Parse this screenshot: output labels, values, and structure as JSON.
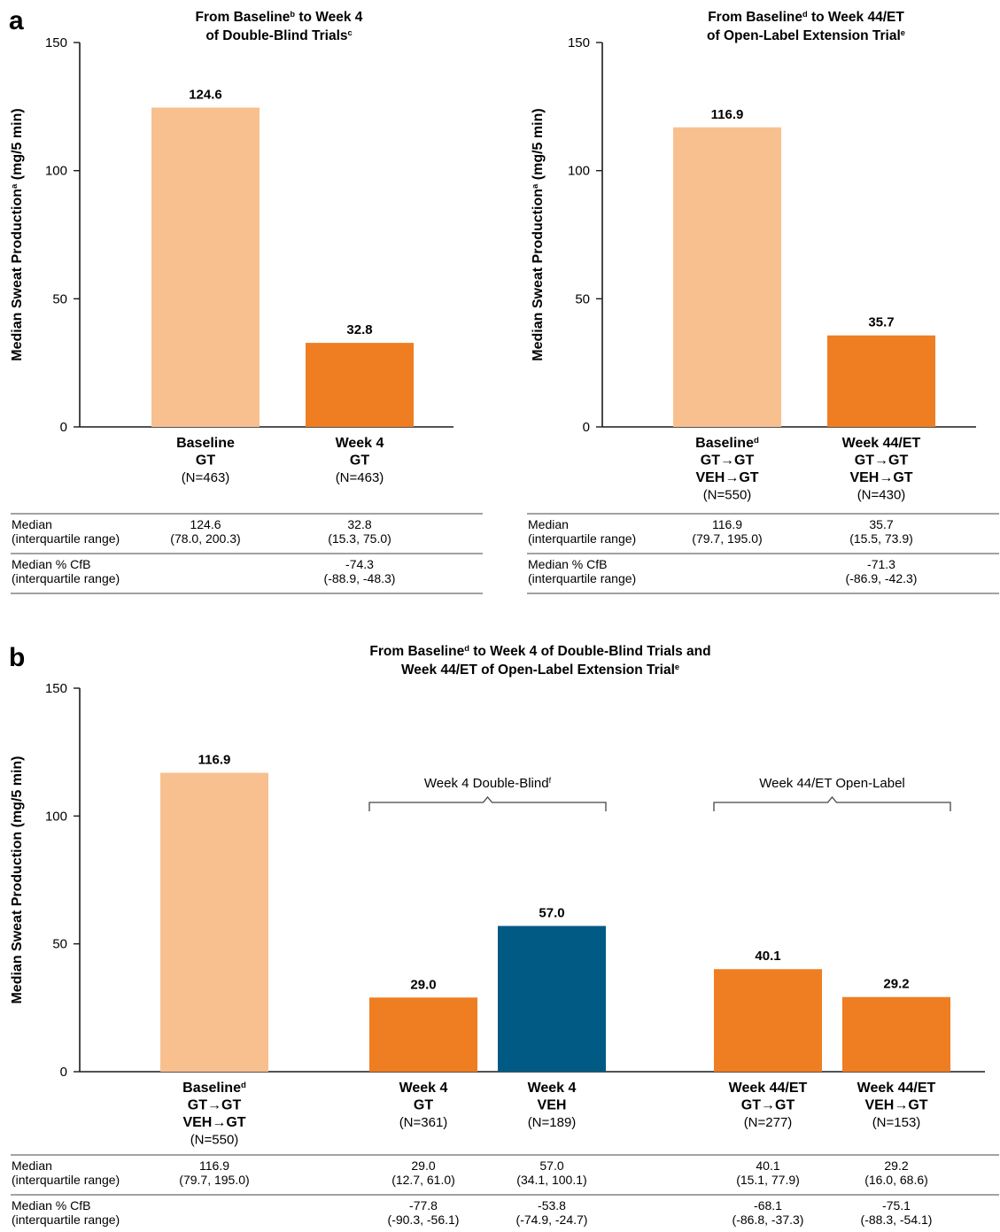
{
  "colors": {
    "baseline": "#F9C08F",
    "gt": "#EF7D22",
    "veh": "#005A84",
    "axis": "#1a1a1a"
  },
  "panels": {
    "a1": {
      "letter": "a",
      "title_lines": [
        [
          "From Baseline",
          "b",
          " to Week 4"
        ],
        [
          "of Double-Blind Trials",
          "c",
          ""
        ]
      ],
      "ylabel": [
        "Median Sweat Production",
        "a",
        " (mg/5 min)"
      ],
      "yticks": [
        "0",
        "50",
        "100",
        "150"
      ],
      "categories": [
        {
          "lines": [
            [
              "Baseline",
              "",
              ""
            ],
            [
              "GT",
              "",
              ""
            ]
          ],
          "n": "(N=463)"
        },
        {
          "lines": [
            [
              "Week 4",
              "",
              ""
            ],
            [
              "GT",
              "",
              ""
            ]
          ],
          "n": "(N=463)"
        }
      ],
      "table": {
        "row1_label": [
          "Median",
          "(interquartile range)"
        ],
        "row1": [
          [
            "124.6",
            "(78.0, 200.3)"
          ],
          [
            "32.8",
            "(15.3, 75.0)"
          ]
        ],
        "row2_label": [
          "Median % CfB",
          "(interquartile range)"
        ],
        "row2": [
          [
            "",
            ""
          ],
          [
            "-74.3",
            "(-88.9, -48.3)"
          ]
        ]
      }
    },
    "a2": {
      "title_lines": [
        [
          "From Baseline",
          "d",
          " to Week 44/ET"
        ],
        [
          "of Open-Label Extension Trial",
          "e",
          ""
        ]
      ],
      "ylabel": [
        "Median Sweat Production",
        "a",
        " (mg/5 min)"
      ],
      "yticks": [
        "0",
        "50",
        "100",
        "150"
      ],
      "categories": [
        {
          "lines": [
            [
              "Baseline",
              "d",
              ""
            ],
            [
              "GT→GT",
              "",
              ""
            ],
            [
              "VEH→GT",
              "",
              ""
            ]
          ],
          "n": "(N=550)"
        },
        {
          "lines": [
            [
              "Week 44/ET",
              "",
              ""
            ],
            [
              "GT→GT",
              "",
              ""
            ],
            [
              "VEH→GT",
              "",
              ""
            ]
          ],
          "n": "(N=430)"
        }
      ],
      "table": {
        "row1_label": [
          "Median",
          "(interquartile range)"
        ],
        "row1": [
          [
            "116.9",
            "(79.7, 195.0)"
          ],
          [
            "35.7",
            "(15.5, 73.9)"
          ]
        ],
        "row2_label": [
          "Median % CfB",
          "(interquartile range)"
        ],
        "row2": [
          [
            "",
            ""
          ],
          [
            "-71.3",
            "(-86.9, -42.3)"
          ]
        ]
      }
    },
    "b": {
      "letter": "b",
      "title_lines": [
        [
          "From Baseline",
          "d",
          " to Week 4 of Double-Blind Trials and"
        ],
        [
          "Week 44/ET of Open-Label Extension Trial",
          "e",
          ""
        ]
      ],
      "ylabel": [
        "Median Sweat Production (mg/5 min)",
        "",
        ""
      ],
      "yticks": [
        "0",
        "50",
        "100",
        "150"
      ],
      "groups": [
        [
          "Week 4 Double-Blind",
          "f"
        ],
        [
          "Week 44/ET Open-Label",
          ""
        ]
      ],
      "categories": [
        {
          "lines": [
            [
              "Baseline",
              "d",
              ""
            ],
            [
              "GT→GT",
              "",
              ""
            ],
            [
              "VEH→GT",
              "",
              ""
            ]
          ],
          "n": "(N=550)"
        },
        {
          "lines": [
            [
              "Week 4",
              "",
              ""
            ],
            [
              "GT",
              "",
              ""
            ]
          ],
          "n": "(N=361)"
        },
        {
          "lines": [
            [
              "Week 4",
              "",
              ""
            ],
            [
              "VEH",
              "",
              ""
            ]
          ],
          "n": "(N=189)"
        },
        {
          "lines": [
            [
              "Week 44/ET",
              "",
              ""
            ],
            [
              "GT→GT",
              "",
              ""
            ]
          ],
          "n": "(N=277)"
        },
        {
          "lines": [
            [
              "Week 44/ET",
              "",
              ""
            ],
            [
              "VEH→GT",
              "",
              ""
            ]
          ],
          "n": "(N=153)"
        }
      ],
      "table": {
        "row1_label": [
          "Median",
          "(interquartile range)"
        ],
        "row1": [
          [
            "116.9",
            "(79.7, 195.0)"
          ],
          [
            "29.0",
            "(12.7, 61.0)"
          ],
          [
            "57.0",
            "(34.1, 100.1)"
          ],
          [
            "40.1",
            "(15.1, 77.9)"
          ],
          [
            "29.2",
            "(16.0, 68.6)"
          ]
        ],
        "row2_label": [
          "Median % CfB",
          "(interquartile range)"
        ],
        "row2": [
          [
            "",
            ""
          ],
          [
            "-77.8",
            "(-90.3, -56.1)"
          ],
          [
            "-53.8",
            "(-74.9, -24.7)"
          ],
          [
            "-68.1",
            "(-86.8, -37.3)"
          ],
          [
            "-75.1",
            "(-88.3, -54.1)"
          ]
        ]
      }
    }
  },
  "chart_data": [
    {
      "type": "bar",
      "title": "From Baseline to Week 4 of Double-Blind Trials",
      "ylabel": "Median Sweat Production (mg/5 min)",
      "categories": [
        "Baseline GT (N=463)",
        "Week 4 GT (N=463)"
      ],
      "values": [
        124.6,
        32.8
      ],
      "data_labels": [
        "124.6",
        "32.8"
      ],
      "bar_colors": [
        "baseline",
        "gt"
      ],
      "ylim": [
        0,
        150
      ],
      "grid": false
    },
    {
      "type": "bar",
      "title": "From Baseline to Week 44/ET of Open-Label Extension Trial",
      "ylabel": "Median Sweat Production (mg/5 min)",
      "categories": [
        "Baseline GT→GT VEH→GT (N=550)",
        "Week 44/ET GT→GT VEH→GT (N=430)"
      ],
      "values": [
        116.9,
        35.7
      ],
      "data_labels": [
        "116.9",
        "35.7"
      ],
      "bar_colors": [
        "baseline",
        "gt"
      ],
      "ylim": [
        0,
        150
      ],
      "grid": false
    },
    {
      "type": "bar",
      "title": "From Baseline to Week 4 of Double-Blind Trials and Week 44/ET of Open-Label Extension Trial",
      "ylabel": "Median Sweat Production (mg/5 min)",
      "categories": [
        "Baseline GT→GT VEH→GT (N=550)",
        "Week 4 GT (N=361)",
        "Week 4 VEH (N=189)",
        "Week 44/ET GT→GT (N=277)",
        "Week 44/ET VEH→GT (N=153)"
      ],
      "values": [
        116.9,
        29.0,
        57.0,
        40.1,
        29.2
      ],
      "data_labels": [
        "116.9",
        "29.0",
        "57.0",
        "40.1",
        "29.2"
      ],
      "bar_colors": [
        "baseline",
        "gt",
        "veh",
        "gt",
        "gt"
      ],
      "ylim": [
        0,
        150
      ],
      "grid": false
    }
  ]
}
